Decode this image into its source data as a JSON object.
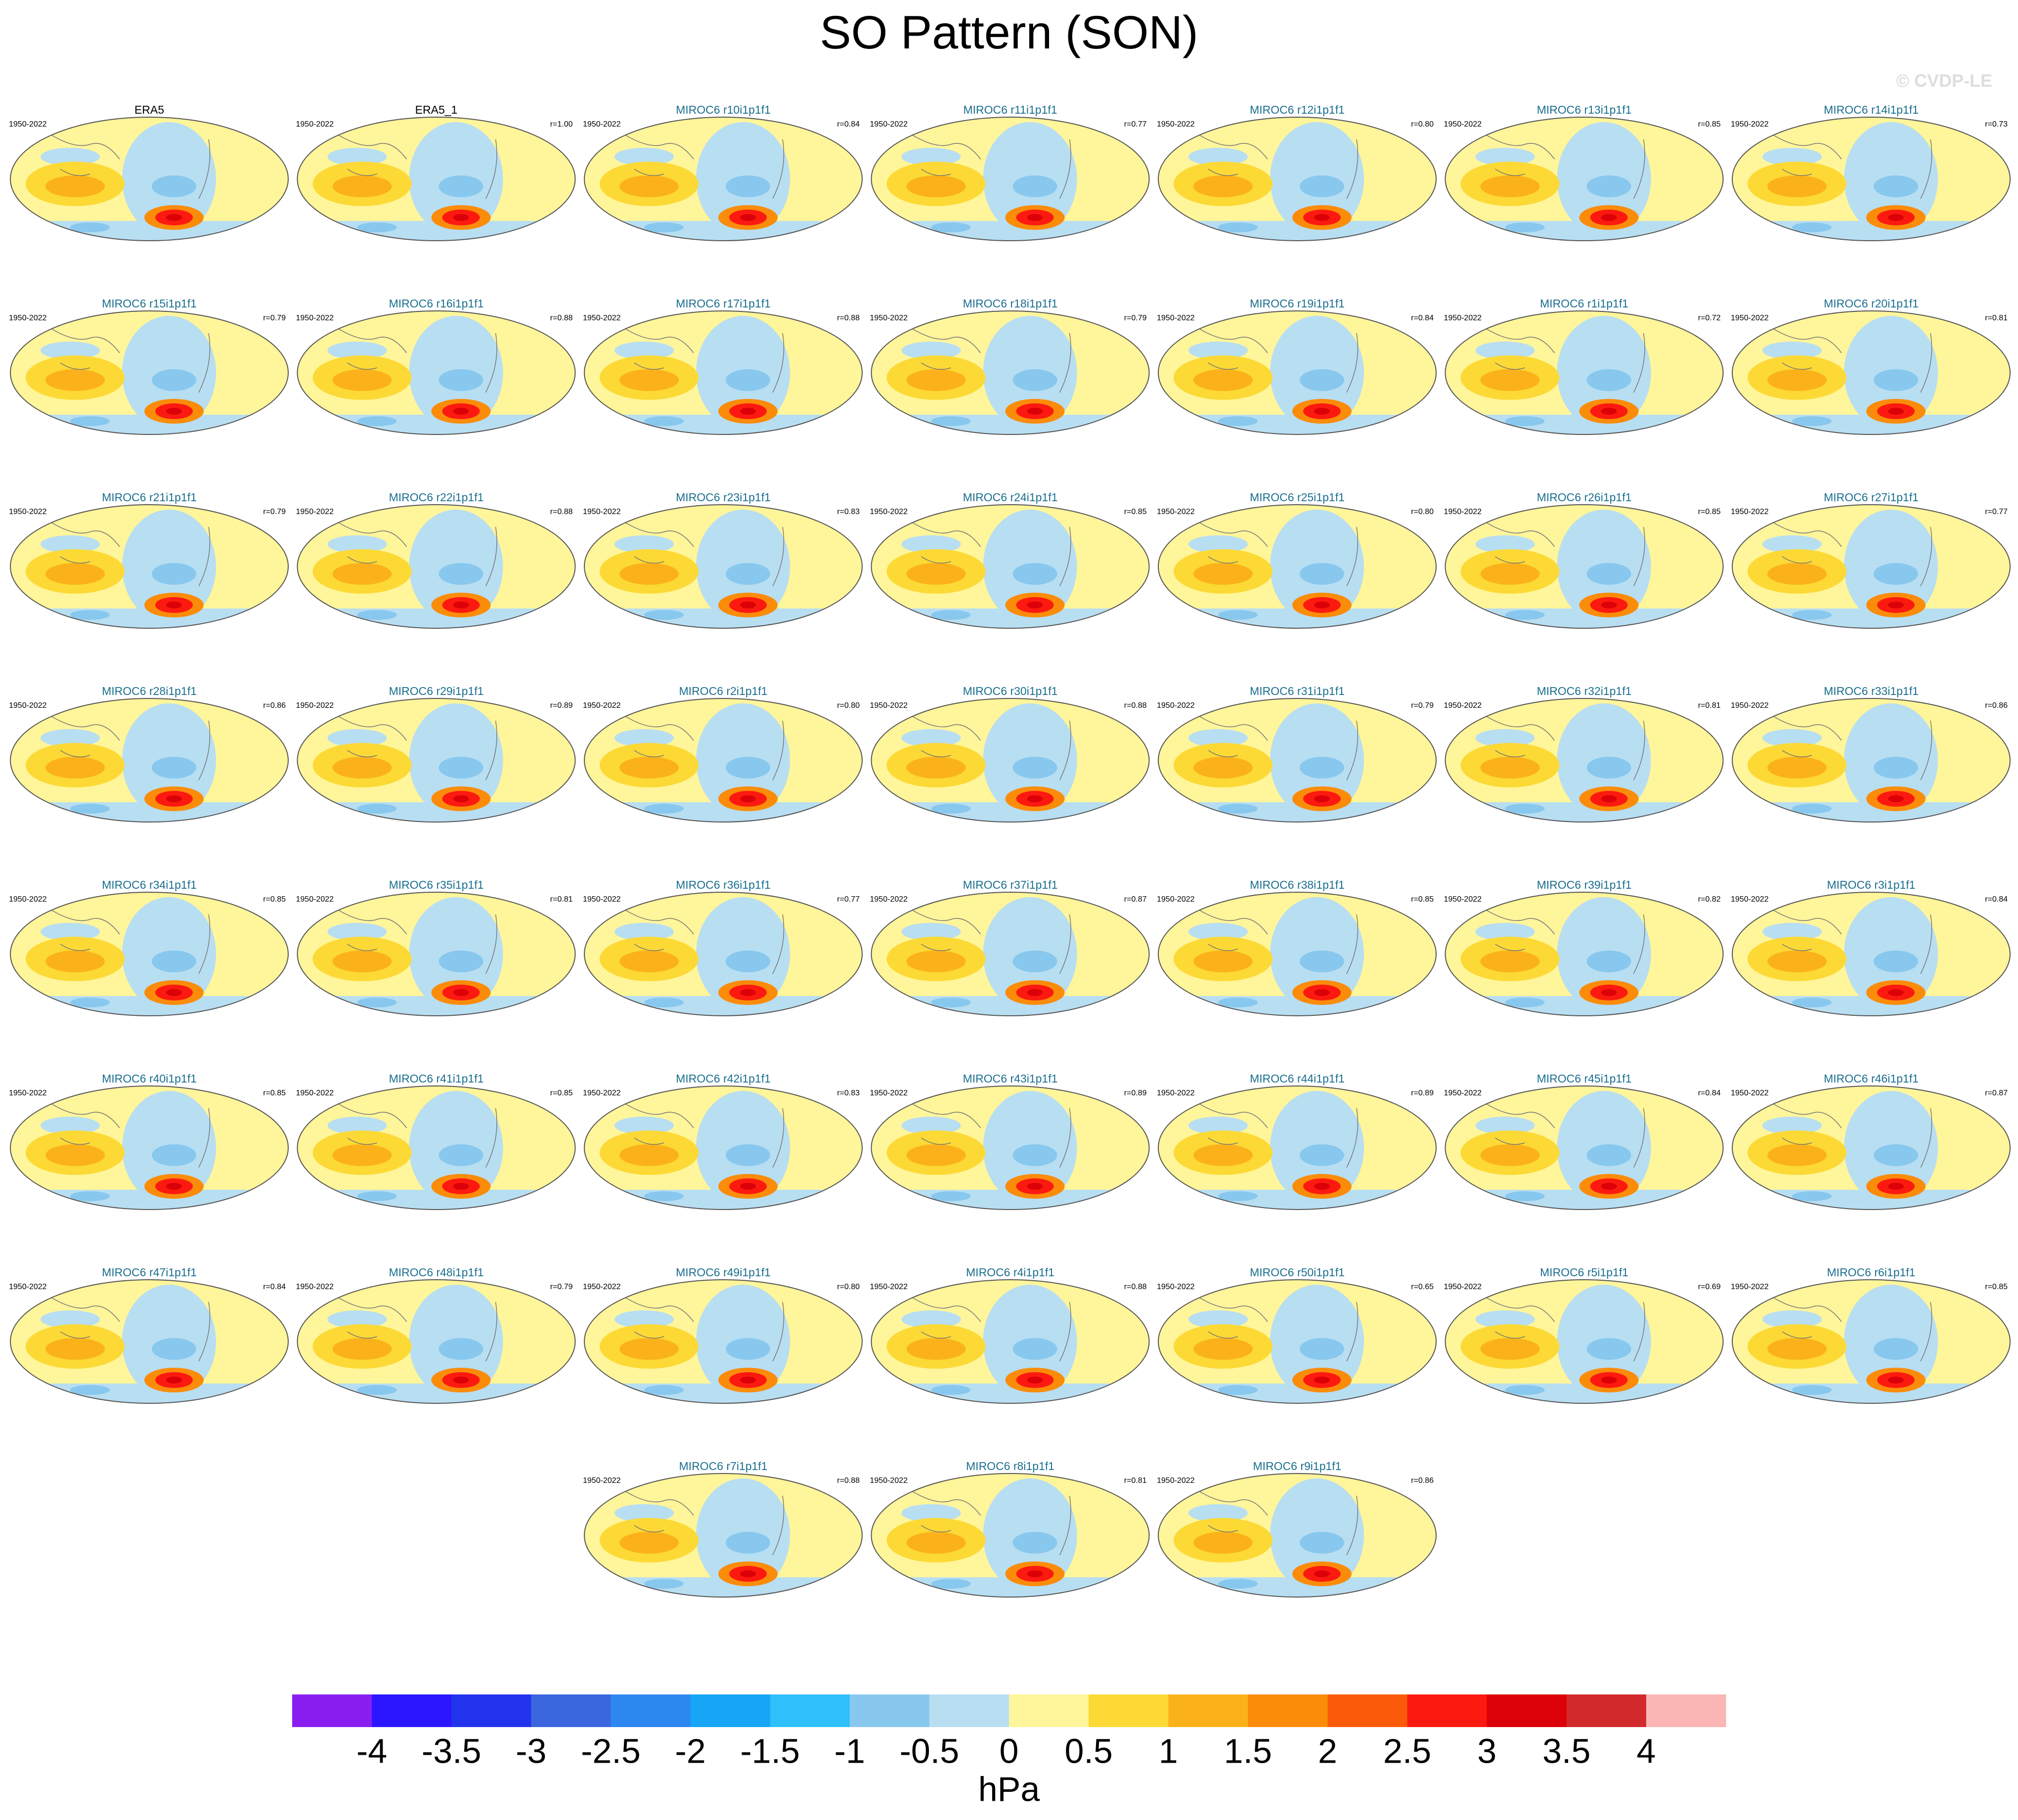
{
  "title": "SO Pattern (SON)",
  "watermark": "© CVDP-LE",
  "panels": [
    {
      "title": "ERA5",
      "years": "1950-2022"
    },
    {
      "title": "ERA5_1",
      "years": "1950-2022",
      "r": "r=1.00"
    },
    {
      "title": "MIROC6 r10i1p1f1",
      "years": "1950-2022",
      "r": "r=0.84"
    },
    {
      "title": "MIROC6 r11i1p1f1",
      "years": "1950-2022",
      "r": "r=0.77"
    },
    {
      "title": "MIROC6 r12i1p1f1",
      "years": "1950-2022",
      "r": "r=0.80"
    },
    {
      "title": "MIROC6 r13i1p1f1",
      "years": "1950-2022",
      "r": "r=0.85"
    },
    {
      "title": "MIROC6 r14i1p1f1",
      "years": "1950-2022",
      "r": "r=0.73"
    },
    {
      "title": "MIROC6 r15i1p1f1",
      "years": "1950-2022",
      "r": "r=0.79"
    },
    {
      "title": "MIROC6 r16i1p1f1",
      "years": "1950-2022",
      "r": "r=0.88"
    },
    {
      "title": "MIROC6 r17i1p1f1",
      "years": "1950-2022",
      "r": "r=0.88"
    },
    {
      "title": "MIROC6 r18i1p1f1",
      "years": "1950-2022",
      "r": "r=0.79"
    },
    {
      "title": "MIROC6 r19i1p1f1",
      "years": "1950-2022",
      "r": "r=0.84"
    },
    {
      "title": "MIROC6 r1i1p1f1",
      "years": "1950-2022",
      "r": "r=0.72"
    },
    {
      "title": "MIROC6 r20i1p1f1",
      "years": "1950-2022",
      "r": "r=0.81"
    },
    {
      "title": "MIROC6 r21i1p1f1",
      "years": "1950-2022",
      "r": "r=0.79"
    },
    {
      "title": "MIROC6 r22i1p1f1",
      "years": "1950-2022",
      "r": "r=0.88"
    },
    {
      "title": "MIROC6 r23i1p1f1",
      "years": "1950-2022",
      "r": "r=0.83"
    },
    {
      "title": "MIROC6 r24i1p1f1",
      "years": "1950-2022",
      "r": "r=0.85"
    },
    {
      "title": "MIROC6 r25i1p1f1",
      "years": "1950-2022",
      "r": "r=0.80"
    },
    {
      "title": "MIROC6 r26i1p1f1",
      "years": "1950-2022",
      "r": "r=0.85"
    },
    {
      "title": "MIROC6 r27i1p1f1",
      "years": "1950-2022",
      "r": "r=0.77"
    },
    {
      "title": "MIROC6 r28i1p1f1",
      "years": "1950-2022",
      "r": "r=0.86"
    },
    {
      "title": "MIROC6 r29i1p1f1",
      "years": "1950-2022",
      "r": "r=0.89"
    },
    {
      "title": "MIROC6 r2i1p1f1",
      "years": "1950-2022",
      "r": "r=0.80"
    },
    {
      "title": "MIROC6 r30i1p1f1",
      "years": "1950-2022",
      "r": "r=0.88"
    },
    {
      "title": "MIROC6 r31i1p1f1",
      "years": "1950-2022",
      "r": "r=0.79"
    },
    {
      "title": "MIROC6 r32i1p1f1",
      "years": "1950-2022",
      "r": "r=0.81"
    },
    {
      "title": "MIROC6 r33i1p1f1",
      "years": "1950-2022",
      "r": "r=0.86"
    },
    {
      "title": "MIROC6 r34i1p1f1",
      "years": "1950-2022",
      "r": "r=0.85"
    },
    {
      "title": "MIROC6 r35i1p1f1",
      "years": "1950-2022",
      "r": "r=0.81"
    },
    {
      "title": "MIROC6 r36i1p1f1",
      "years": "1950-2022",
      "r": "r=0.77"
    },
    {
      "title": "MIROC6 r37i1p1f1",
      "years": "1950-2022",
      "r": "r=0.87"
    },
    {
      "title": "MIROC6 r38i1p1f1",
      "years": "1950-2022",
      "r": "r=0.85"
    },
    {
      "title": "MIROC6 r39i1p1f1",
      "years": "1950-2022",
      "r": "r=0.82"
    },
    {
      "title": "MIROC6 r3i1p1f1",
      "years": "1950-2022",
      "r": "r=0.84"
    },
    {
      "title": "MIROC6 r40i1p1f1",
      "years": "1950-2022",
      "r": "r=0.85"
    },
    {
      "title": "MIROC6 r41i1p1f1",
      "years": "1950-2022",
      "r": "r=0.85"
    },
    {
      "title": "MIROC6 r42i1p1f1",
      "years": "1950-2022",
      "r": "r=0.83"
    },
    {
      "title": "MIROC6 r43i1p1f1",
      "years": "1950-2022",
      "r": "r=0.89"
    },
    {
      "title": "MIROC6 r44i1p1f1",
      "years": "1950-2022",
      "r": "r=0.89"
    },
    {
      "title": "MIROC6 r45i1p1f1",
      "years": "1950-2022",
      "r": "r=0.84"
    },
    {
      "title": "MIROC6 r46i1p1f1",
      "years": "1950-2022",
      "r": "r=0.87"
    },
    {
      "title": "MIROC6 r47i1p1f1",
      "years": "1950-2022",
      "r": "r=0.84"
    },
    {
      "title": "MIROC6 r48i1p1f1",
      "years": "1950-2022",
      "r": "r=0.79"
    },
    {
      "title": "MIROC6 r49i1p1f1",
      "years": "1950-2022",
      "r": "r=0.80"
    },
    {
      "title": "MIROC6 r4i1p1f1",
      "years": "1950-2022",
      "r": "r=0.88"
    },
    {
      "title": "MIROC6 r50i1p1f1",
      "years": "1950-2022",
      "r": "r=0.65"
    },
    {
      "title": "MIROC6 r5i1p1f1",
      "years": "1950-2022",
      "r": "r=0.69"
    },
    {
      "title": "MIROC6 r6i1p1f1",
      "years": "1950-2022",
      "r": "r=0.85"
    },
    {
      "title": "MIROC6 r7i1p1f1",
      "years": "1950-2022",
      "r": "r=0.88"
    },
    {
      "title": "MIROC6 r8i1p1f1",
      "years": "1950-2022",
      "r": "r=0.81"
    },
    {
      "title": "MIROC6 r9i1p1f1",
      "years": "1950-2022",
      "r": "r=0.86"
    }
  ],
  "colorbar": {
    "label": "hPa",
    "colors": [
      "#8a1ef0",
      "#2b16ff",
      "#2233ee",
      "#3b66e0",
      "#2e86f0",
      "#17a6f5",
      "#2fbff9",
      "#88c8ee",
      "#b8def2",
      "#fff59a",
      "#fcd935",
      "#fbb21a",
      "#fb8c0a",
      "#fb5a0a",
      "#fc1a10",
      "#dc0008",
      "#d22a2c",
      "#fbb5b5"
    ],
    "ticks": [
      -4,
      -3.5,
      -3,
      -2.5,
      -2,
      -1.5,
      -1,
      -0.5,
      0,
      0.5,
      1,
      1.5,
      2,
      2.5,
      3,
      3.5,
      4
    ]
  }
}
